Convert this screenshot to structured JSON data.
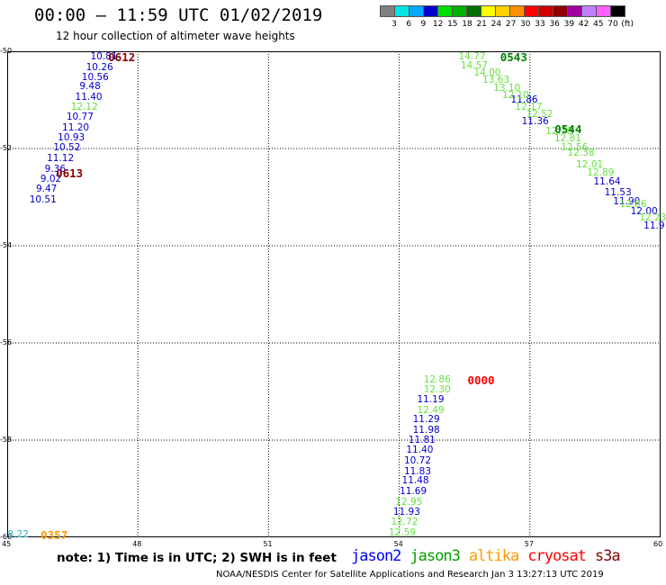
{
  "title": "00:00 – 11:59 UTC 01/02/2019",
  "subtitle": "12 hour collection of altimeter wave heights",
  "colorbar": {
    "colors": [
      "#808080",
      "#00e6e6",
      "#00aaff",
      "#0000cc",
      "#00dd00",
      "#00b000",
      "#007000",
      "#ffff00",
      "#ffd000",
      "#ff9000",
      "#ff0000",
      "#d00000",
      "#900000",
      "#a000a0",
      "#c080ff",
      "#ff60ff",
      "#000000"
    ],
    "labels": [
      "3",
      "6",
      "9",
      "12",
      "15",
      "18",
      "21",
      "24",
      "27",
      "30",
      "33",
      "36",
      "39",
      "42",
      "45",
      "70",
      "(ft)"
    ]
  },
  "axes": {
    "x_ticks": [
      "45",
      "48",
      "51",
      "54",
      "57",
      "60"
    ],
    "y_ticks": [
      "-50",
      "-52",
      "-54",
      "-56",
      "-58",
      "-60"
    ],
    "xlim": [
      45,
      60
    ],
    "ylim": [
      -60,
      -50
    ]
  },
  "chart_data": {
    "type": "scatter",
    "series": [
      {
        "name": "jason2",
        "color": "#0000cc",
        "points": [
          {
            "x": 47.2,
            "y": -50.12,
            "v": "10.81"
          },
          {
            "x": 47.1,
            "y": -50.33,
            "v": "10.26"
          },
          {
            "x": 47.0,
            "y": -50.53,
            "v": "10.56"
          },
          {
            "x": 46.95,
            "y": -50.73,
            "v": "9.48"
          },
          {
            "x": 46.85,
            "y": -50.94,
            "v": "11.40"
          },
          {
            "x": 46.65,
            "y": -51.36,
            "v": "10.77"
          },
          {
            "x": 46.55,
            "y": -51.58,
            "v": "11.20"
          },
          {
            "x": 46.45,
            "y": -51.78,
            "v": "10.93"
          },
          {
            "x": 46.35,
            "y": -51.99,
            "v": "10.52"
          },
          {
            "x": 46.2,
            "y": -52.2,
            "v": "11.12"
          },
          {
            "x": 46.15,
            "y": -52.42,
            "v": "9.36"
          },
          {
            "x": 46.05,
            "y": -52.63,
            "v": "9.02"
          },
          {
            "x": 45.95,
            "y": -52.84,
            "v": "9.47"
          },
          {
            "x": 45.8,
            "y": -53.05,
            "v": "10.51"
          },
          {
            "x": 56.85,
            "y": -51.0,
            "v": "11.86"
          },
          {
            "x": 57.1,
            "y": -51.45,
            "v": "11.36"
          },
          {
            "x": 58.75,
            "y": -52.68,
            "v": "11.64"
          },
          {
            "x": 59.0,
            "y": -52.9,
            "v": "11.53"
          },
          {
            "x": 59.2,
            "y": -53.1,
            "v": "11.90"
          },
          {
            "x": 59.6,
            "y": -53.3,
            "v": "12.00"
          },
          {
            "x": 59.9,
            "y": -53.6,
            "v": "11.9"
          },
          {
            "x": 54.7,
            "y": -57.17,
            "v": "11.19"
          },
          {
            "x": 54.6,
            "y": -57.58,
            "v": "11.29"
          },
          {
            "x": 54.6,
            "y": -57.79,
            "v": "11.98"
          },
          {
            "x": 54.5,
            "y": -58.0,
            "v": "11.81"
          },
          {
            "x": 54.45,
            "y": -58.2,
            "v": "11.40"
          },
          {
            "x": 54.4,
            "y": -58.43,
            "v": "10.72"
          },
          {
            "x": 54.4,
            "y": -58.64,
            "v": "11.83"
          },
          {
            "x": 54.35,
            "y": -58.84,
            "v": "11.48"
          },
          {
            "x": 54.3,
            "y": -59.06,
            "v": "11.69"
          },
          {
            "x": 54.15,
            "y": -59.48,
            "v": "11.93"
          }
        ]
      },
      {
        "name": "jason3",
        "color": "#66e040",
        "points": [
          {
            "x": 46.75,
            "y": -51.15,
            "v": "12.12"
          },
          {
            "x": 55.65,
            "y": -50.12,
            "v": "14.77"
          },
          {
            "x": 55.7,
            "y": -50.3,
            "v": "14.57"
          },
          {
            "x": 56.0,
            "y": -50.45,
            "v": "14.00"
          },
          {
            "x": 56.2,
            "y": -50.6,
            "v": "13.63"
          },
          {
            "x": 56.45,
            "y": -50.75,
            "v": "13.10"
          },
          {
            "x": 56.65,
            "y": -50.9,
            "v": "12.10"
          },
          {
            "x": 56.95,
            "y": -51.15,
            "v": "12.17"
          },
          {
            "x": 57.2,
            "y": -51.3,
            "v": "12.52"
          },
          {
            "x": 57.65,
            "y": -51.65,
            "v": "12.78"
          },
          {
            "x": 57.85,
            "y": -51.8,
            "v": "12.81"
          },
          {
            "x": 58.0,
            "y": -51.98,
            "v": "12.56"
          },
          {
            "x": 58.15,
            "y": -52.1,
            "v": "12.38"
          },
          {
            "x": 58.35,
            "y": -52.33,
            "v": "12.01"
          },
          {
            "x": 58.6,
            "y": -52.5,
            "v": "12.89"
          },
          {
            "x": 59.35,
            "y": -53.15,
            "v": "12.86"
          },
          {
            "x": 59.8,
            "y": -53.43,
            "v": "12.23"
          },
          {
            "x": 54.85,
            "y": -56.75,
            "v": "12.86"
          },
          {
            "x": 54.85,
            "y": -56.96,
            "v": "12.30"
          },
          {
            "x": 54.7,
            "y": -57.38,
            "v": "12.49"
          },
          {
            "x": 54.2,
            "y": -59.27,
            "v": "12.95"
          },
          {
            "x": 54.1,
            "y": -59.69,
            "v": "12.72"
          },
          {
            "x": 54.05,
            "y": -59.9,
            "v": "12.59"
          }
        ]
      },
      {
        "name": "altika",
        "color": "#2ab0d0",
        "points": [
          {
            "x": 45.3,
            "y": -59.95,
            "v": "8.22"
          }
        ]
      }
    ],
    "time_labels": [
      {
        "x": 47.4,
        "y": -50.12,
        "text": "0612",
        "color": "#8b0000"
      },
      {
        "x": 46.2,
        "y": -52.5,
        "text": "0613",
        "color": "#8b0000"
      },
      {
        "x": 56.4,
        "y": -50.12,
        "text": "0543",
        "color": "#008000"
      },
      {
        "x": 57.65,
        "y": -51.6,
        "text": "0544",
        "color": "#008000"
      },
      {
        "x": 55.65,
        "y": -56.75,
        "text": "0000",
        "color": "#ff0000"
      },
      {
        "x": 45.85,
        "y": -59.95,
        "text": "0357",
        "color": "#ff9900"
      }
    ]
  },
  "note": "note:  1) Time is in UTC;  2) SWH is in feet",
  "legend": [
    {
      "label": "jason2",
      "color": "#0000ff"
    },
    {
      "label": "jason3",
      "color": "#00a000"
    },
    {
      "label": "altika",
      "color": "#ff9900"
    },
    {
      "label": "cryosat",
      "color": "#ff0000"
    },
    {
      "label": "s3a",
      "color": "#8b0000"
    }
  ],
  "footer": "NOAA/NESDIS Center for Satellite Applications and Research    Jan  3 13:27:13 UTC 2019"
}
